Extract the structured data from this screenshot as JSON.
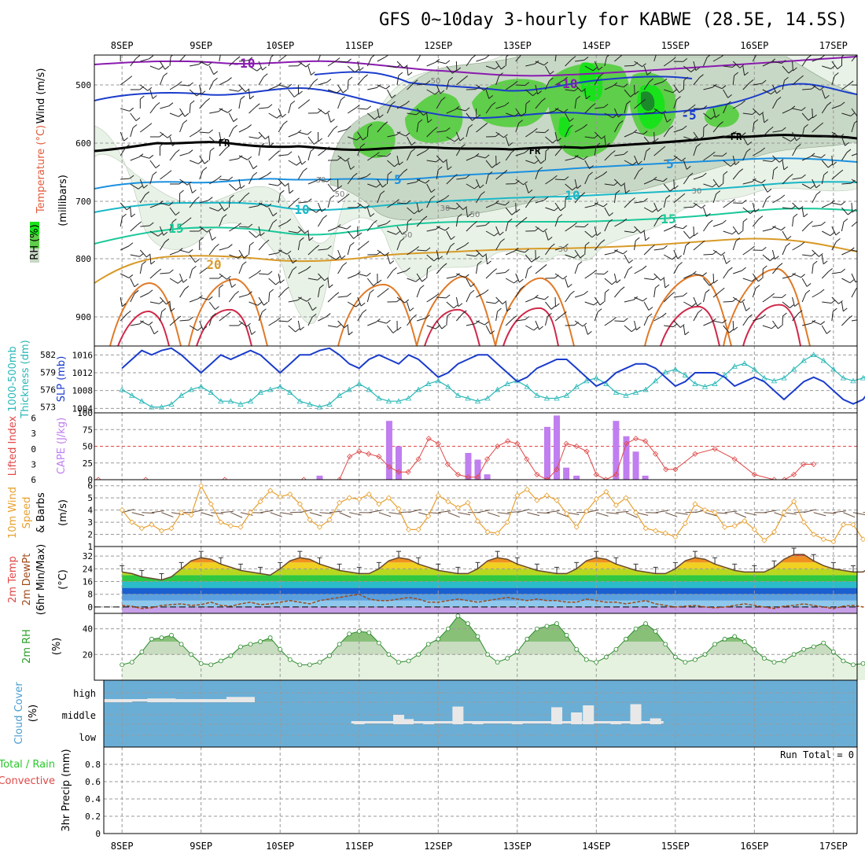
{
  "title": "GFS 0~10day 3-hourly for KABWE (28.5E, 14.5S)",
  "date_labels": [
    "8SEP",
    "9SEP",
    "10SEP",
    "11SEP",
    "12SEP",
    "13SEP",
    "14SEP",
    "15SEP",
    "16SEP",
    "17SEP"
  ],
  "colors": {
    "rh_green_light": "#e8f2e6",
    "rh_green_mid": "#c8d8c6",
    "rh_green": "#5fce4a",
    "rh_green_bright": "#19e21b",
    "slp": "#1a3ccc",
    "thickness": "#2ab7b7",
    "lifted_index": "#e04848",
    "cape": "#c07ef0",
    "wind_speed": "#e8a030",
    "cloud_bg": "#6aaed6",
    "cloud_bar": "#e8e8e8"
  },
  "upper_air": {
    "ylabel_wind": "Wind (m/s)",
    "ylabel_temp": "Temperature (°C)",
    "ylabel_mb": "(millibars)",
    "ylabel_rh": "RH (%)",
    "yticks": [
      "500",
      "600",
      "700",
      "800",
      "900"
    ],
    "isotherm_labels": [
      "-10",
      "-10",
      "-5",
      "FR",
      "FR",
      "FR",
      "5",
      "5",
      "10",
      "10",
      "15",
      "15",
      "20"
    ],
    "rh_labels": [
      "50",
      "30",
      "50",
      "30",
      "50",
      "50",
      "30",
      "30"
    ]
  },
  "panels": {
    "p2": {
      "label_thick": "1000-500mb",
      "label_thick2": "Thickness (dm)",
      "label_slp": "SLP (mb)"
    },
    "p3": {
      "label_li": "Lifted Index",
      "label_cape": "CAPE (J/kg)"
    },
    "p4": {
      "label_1": "10m Wind",
      "label_2": "Speed",
      "label_3": "& Barbs",
      "label_unit": "(m/s)"
    },
    "p5": {
      "label_1": "2m Temp",
      "label_2": "2m DewPt",
      "label_3": "(6hr Min/Max)",
      "label_unit": "(°C)"
    },
    "p6": {
      "label_1": "2m RH",
      "label_unit": "(%)"
    },
    "p7": {
      "label_1": "Cloud Cover",
      "label_unit": "(%)",
      "levels": [
        "high",
        "middle",
        "low"
      ]
    },
    "p8": {
      "label_1": "Total / Rain",
      "label_2": "Convective",
      "label_3": "3hr Precip (mm)",
      "run_total": "Run Total = 0"
    }
  },
  "chart_data": [
    {
      "type": "line",
      "panel": "sea level pressure & 1000-500mb thickness",
      "x_unit": "days from 8SEP 00Z",
      "x_range": [
        -0.35,
        9.3
      ],
      "series": [
        {
          "name": "SLP (mb)",
          "y_range": [
            1003,
            1018
          ],
          "yticks": [
            1004,
            1008,
            1012,
            1016
          ],
          "values": [
            1013,
            1015,
            1017,
            1016,
            1017,
            1017.5,
            1016,
            1014,
            1012,
            1014,
            1016,
            1015,
            1016,
            1017,
            1016,
            1014,
            1012,
            1014,
            1016,
            1016,
            1017,
            1017.5,
            1016,
            1014,
            1013,
            1015,
            1016,
            1015,
            1014,
            1016,
            1015,
            1013,
            1011,
            1012,
            1014,
            1015,
            1016,
            1016,
            1014,
            1012,
            1010,
            1011,
            1013,
            1014,
            1015,
            1015,
            1013,
            1011,
            1009,
            1010,
            1012,
            1013,
            1014,
            1014,
            1013,
            1011,
            1009,
            1010,
            1012,
            1012,
            1012,
            1011,
            1009,
            1010,
            1011,
            1010,
            1008,
            1006,
            1008,
            1010,
            1011,
            1010,
            1008,
            1006,
            1005,
            1006,
            1009,
            1010,
            1011
          ]
        },
        {
          "name": "1000-500mb Thickness (dm)",
          "y_range": [
            572,
            583.5
          ],
          "yticks": [
            573,
            576,
            579,
            582
          ],
          "values": [
            576,
            575,
            574,
            573,
            573,
            573.5,
            575,
            576,
            576.5,
            575.5,
            574,
            574,
            573.5,
            574,
            575.5,
            576,
            576.5,
            575.5,
            574,
            573.5,
            573,
            573.5,
            575,
            576,
            577,
            576,
            574.5,
            574,
            574,
            574.5,
            576,
            577,
            577.5,
            576.5,
            575,
            574.5,
            574,
            574.5,
            576,
            577,
            577.5,
            576.5,
            575,
            574.5,
            574.5,
            575,
            576.5,
            577.5,
            578,
            577,
            575.5,
            575,
            575.5,
            576,
            577.5,
            579,
            579.5,
            578.5,
            577,
            576.5,
            577,
            578.5,
            580,
            580.5,
            579.5,
            578,
            577.5,
            578,
            579.5,
            581,
            582,
            581,
            579.5,
            578,
            577.5,
            578,
            579,
            580,
            580.5
          ]
        }
      ]
    },
    {
      "type": "bar",
      "panel": "lifted index & CAPE",
      "x_unit": "days from 8SEP 00Z",
      "x_range": [
        -0.35,
        9.3
      ],
      "series": [
        {
          "name": "Lifted Index",
          "y_range": [
            6,
            -7
          ],
          "yticks": [
            -6,
            -3,
            0,
            3,
            6
          ],
          "x": [
            -0.3,
            0.3,
            1.3,
            2.3,
            2.75,
            2.88,
            3.0,
            3.12,
            3.25,
            3.38,
            3.5,
            3.62,
            3.75,
            3.88,
            4.0,
            4.12,
            4.25,
            4.38,
            4.5,
            4.62,
            4.75,
            4.88,
            5.0,
            5.12,
            5.25,
            5.38,
            5.5,
            5.62,
            5.75,
            5.88,
            6.0,
            6.12,
            6.25,
            6.38,
            6.5,
            6.62,
            6.75,
            6.88,
            7.0,
            7.25,
            7.5,
            7.75,
            8.0,
            8.25,
            8.38,
            8.5,
            8.62,
            8.75
          ],
          "values": [
            6,
            6,
            6,
            6,
            6,
            1.5,
            0.5,
            1,
            1.5,
            3.5,
            4.5,
            4.5,
            2,
            -2,
            -1,
            3,
            5,
            5.5,
            5.5,
            2,
            -0.5,
            -1.5,
            -1,
            2,
            5,
            6,
            4,
            -1,
            -0.5,
            0.5,
            5,
            6,
            5,
            -1,
            -2,
            -1.5,
            1,
            4,
            4,
            1,
            0,
            2,
            5,
            6,
            6,
            5,
            3,
            3
          ]
        },
        {
          "name": "CAPE (J/kg)",
          "y_range": [
            0,
            100
          ],
          "yticks": [
            0,
            25,
            50,
            75,
            100
          ],
          "x": [
            2.5,
            3.38,
            3.5,
            4.38,
            4.5,
            4.62,
            5.38,
            5.5,
            5.62,
            5.75,
            6.25,
            6.38,
            6.5,
            6.62
          ],
          "values": [
            6,
            88,
            50,
            40,
            30,
            8,
            79,
            96,
            18,
            6,
            88,
            65,
            42,
            6
          ]
        }
      ]
    },
    {
      "type": "line",
      "panel": "10m wind speed",
      "x_unit": "days from 8SEP 00Z",
      "x_range": [
        -0.35,
        9.3
      ],
      "series": [
        {
          "name": "10m Wind Speed (m/s)",
          "y_range": [
            1,
            6.5
          ],
          "yticks": [
            1,
            2,
            3,
            4,
            5,
            6
          ],
          "values": [
            4,
            3,
            2.5,
            2.8,
            2.3,
            2.5,
            3.8,
            3.6,
            6,
            4.5,
            3,
            2.7,
            2.6,
            3.8,
            4.7,
            5.6,
            5.1,
            5.3,
            4.5,
            3.2,
            2.6,
            3.2,
            4.6,
            5,
            4.9,
            5.3,
            4.5,
            5,
            4.1,
            2.4,
            2.4,
            3.5,
            5.2,
            4.7,
            4.2,
            4.6,
            3.1,
            2.2,
            2.1,
            3,
            5.2,
            5.7,
            4.8,
            5.2,
            4.8,
            3.7,
            2.6,
            3.9,
            4.9,
            5.5,
            4.4,
            5,
            3.8,
            2.5,
            2.3,
            2.1,
            1.8,
            2.9,
            4.5,
            4,
            3.8,
            2.6,
            2.7,
            3.1,
            2.4,
            1.5,
            2.2,
            3.8,
            4.7,
            3,
            2,
            1.6,
            1.4,
            2.8,
            2.8,
            1.6,
            1.7,
            3.2,
            4.3
          ]
        }
      ]
    },
    {
      "type": "area",
      "panel": "2m temperature & dewpoint",
      "x_unit": "days from 8SEP 00Z",
      "x_range": [
        -0.35,
        9.3
      ],
      "series": [
        {
          "name": "2m Temp (°C)",
          "y_range": [
            -4,
            38
          ],
          "yticks": [
            0,
            8,
            16,
            24,
            32
          ],
          "values": [
            22,
            21,
            19,
            18,
            17,
            19,
            24,
            29,
            31,
            30,
            27,
            25,
            23,
            22,
            21,
            20,
            24,
            29,
            31,
            30,
            27,
            25,
            23,
            22,
            21,
            21,
            24,
            29,
            31,
            30,
            27,
            25,
            23,
            22,
            21,
            21,
            24,
            29,
            31,
            30,
            27,
            25,
            23,
            22,
            21,
            21,
            24,
            29,
            31,
            30,
            27,
            25,
            23,
            22,
            21,
            21,
            24,
            29,
            31,
            30,
            27,
            25,
            23,
            22,
            22,
            22,
            25,
            30,
            33,
            33,
            29,
            26,
            24,
            23,
            22,
            22,
            26,
            31,
            34
          ]
        },
        {
          "name": "2m DewPt (°C)",
          "values": [
            1,
            0.5,
            -1,
            -0.5,
            1,
            1.5,
            2,
            1,
            1.5,
            3,
            1,
            0.5,
            2,
            3,
            1.5,
            2,
            3,
            4,
            3,
            2,
            4,
            5,
            6,
            7,
            8,
            5,
            4,
            4,
            5,
            6,
            5,
            3,
            3,
            4,
            5,
            4,
            3,
            4,
            5,
            6,
            5,
            4,
            5,
            4,
            4,
            3,
            3,
            5,
            4,
            3,
            3,
            2,
            3,
            4,
            2,
            1,
            0,
            0.5,
            1,
            0,
            -0.5,
            0,
            1,
            2,
            1,
            0,
            -1,
            0.5,
            1,
            2,
            1,
            0,
            -1,
            0.5,
            1,
            0,
            0.5,
            1,
            1.5
          ]
        }
      ]
    },
    {
      "type": "area",
      "panel": "2m relative humidity",
      "x_unit": "days from 8SEP 00Z",
      "x_range": [
        -0.35,
        9.3
      ],
      "series": [
        {
          "name": "2m RH (%)",
          "y_range": [
            0,
            52
          ],
          "yticks": [
            20,
            40
          ],
          "values": [
            12,
            14,
            22,
            32,
            33,
            35,
            28,
            20,
            13,
            12,
            15,
            19,
            26,
            28,
            30,
            33,
            24,
            16,
            12,
            12,
            14,
            19,
            28,
            36,
            38,
            37,
            29,
            20,
            14,
            15,
            20,
            28,
            32,
            40,
            50,
            44,
            34,
            20,
            14,
            17,
            22,
            32,
            40,
            42,
            44,
            35,
            24,
            16,
            14,
            18,
            24,
            32,
            40,
            44,
            38,
            28,
            18,
            14,
            16,
            20,
            28,
            32,
            34,
            30,
            24,
            17,
            14,
            15,
            20,
            24,
            26,
            29,
            22,
            15,
            12,
            13,
            18,
            21,
            24
          ]
        }
      ]
    },
    {
      "type": "bar",
      "panel": "cloud cover",
      "x_unit": "days from 8SEP 00Z",
      "x_range": [
        -0.35,
        9.3
      ],
      "series": [
        {
          "name": "high",
          "x": [
            -0.05,
            0.5,
            0.75,
            1.1,
            1.35,
            1.5
          ],
          "values": [
            8,
            20,
            10,
            8,
            12,
            28
          ]
        },
        {
          "name": "middle",
          "x": [
            3.0,
            3.5,
            3.62,
            3.88,
            4.25,
            4.5,
            5.0,
            5.5,
            5.75,
            5.9,
            6.25,
            6.5,
            6.75
          ],
          "values": [
            6,
            40,
            22,
            8,
            75,
            8,
            10,
            72,
            50,
            80,
            8,
            85,
            25
          ]
        },
        {
          "name": "low",
          "x": [],
          "values": []
        }
      ]
    },
    {
      "type": "bar",
      "panel": "3hr precip",
      "x_unit": "days from 8SEP 00Z",
      "x_range": [
        -0.35,
        9.3
      ],
      "series": [
        {
          "name": "Total / Rain",
          "values": []
        },
        {
          "name": "Convective",
          "values": []
        }
      ],
      "y_range": [
        0,
        1
      ],
      "yticks": [
        0,
        0.2,
        0.4,
        0.6,
        0.8
      ]
    }
  ]
}
